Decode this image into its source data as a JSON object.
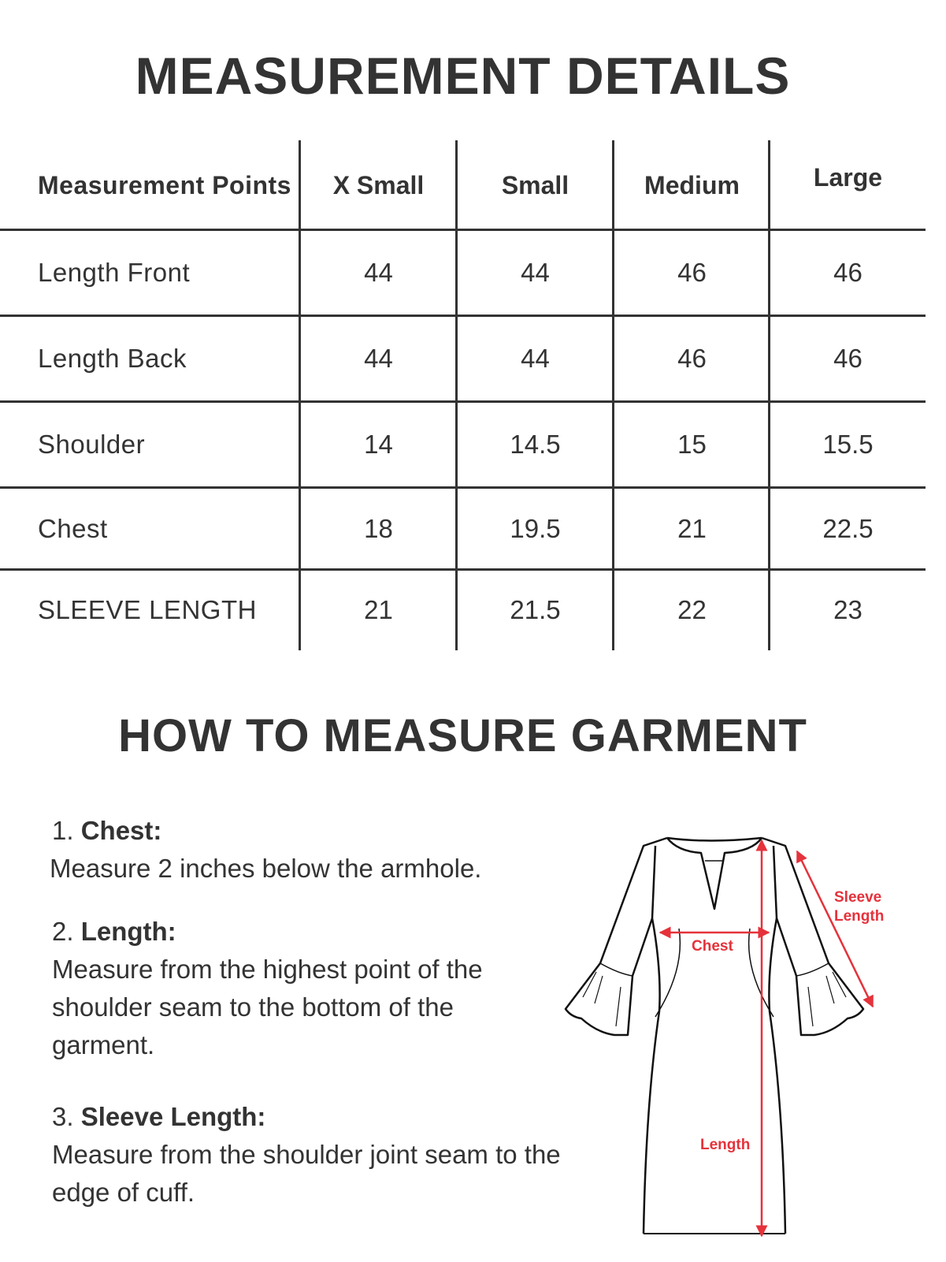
{
  "title": "MEASUREMENT DETAILS",
  "table": {
    "header": {
      "label": "Measurement Points",
      "sizes": [
        "X Small",
        "Small",
        "Medium",
        "Large"
      ]
    },
    "rows": [
      {
        "label": "Length Front",
        "values": [
          "44",
          "44",
          "46",
          "46"
        ]
      },
      {
        "label": "Length Back",
        "values": [
          "44",
          "44",
          "46",
          "46"
        ]
      },
      {
        "label": "Shoulder",
        "values": [
          "14",
          "14.5",
          "15",
          "15.5"
        ]
      },
      {
        "label": "Chest",
        "values": [
          "18",
          "19.5",
          "21",
          "22.5"
        ]
      },
      {
        "label": "SLEEVE LENGTH",
        "values": [
          "21",
          "21.5",
          "22",
          "23"
        ]
      }
    ]
  },
  "how_to": {
    "title": "HOW TO MEASURE GARMENT",
    "steps": [
      {
        "num": "1.",
        "name": "Chest:",
        "text": "Measure 2 inches  below the armhole."
      },
      {
        "num": "2.",
        "name": "Length:",
        "text": "Measure from the highest point of the shoulder seam to the bottom of the garment."
      },
      {
        "num": "3.",
        "name": "Sleeve Length:",
        "text": "Measure from the shoulder joint seam to the edge of cuff."
      }
    ]
  },
  "diagram": {
    "labels": {
      "chest": "Chest",
      "length": "Length",
      "sleeve1": "Sleeve",
      "sleeve2": "Length"
    },
    "accent_color": "#e5323b"
  }
}
